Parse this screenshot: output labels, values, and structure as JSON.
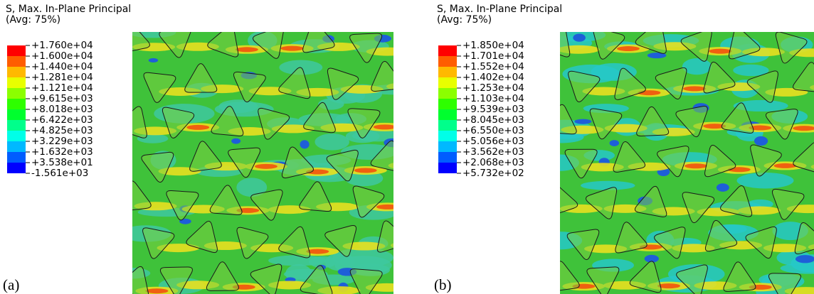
{
  "panels": [
    {
      "title": "S, Max. In-Plane Principal",
      "subtitle": "(Avg: 75%)",
      "letter": "(a)",
      "legend_labels": [
        "+1.760e+04",
        "+1.600e+04",
        "+1.440e+04",
        "+1.281e+04",
        "+1.121e+04",
        "+9.615e+03",
        "+8.018e+03",
        "+6.422e+03",
        "+4.825e+03",
        "+3.229e+03",
        "+1.632e+03",
        "+3.538e+01",
        "-1.561e+03"
      ],
      "legend_colors": [
        "#ff0000",
        "#ff5d00",
        "#ffb900",
        "#e8ff00",
        "#8bff00",
        "#2eff00",
        "#00ff2e",
        "#00ff8b",
        "#00ffe8",
        "#00b9ff",
        "#005dff",
        "#0000ff"
      ]
    },
    {
      "title": "S, Max. In-Plane Principal",
      "subtitle": "(Avg: 75%)",
      "letter": "(b)",
      "legend_labels": [
        "+1.850e+04",
        "+1.701e+04",
        "+1.552e+04",
        "+1.402e+04",
        "+1.253e+04",
        "+1.103e+04",
        "+9.539e+03",
        "+8.045e+03",
        "+6.550e+03",
        "+5.056e+03",
        "+3.562e+03",
        "+2.068e+03",
        "+5.732e+02"
      ],
      "legend_colors": [
        "#ff0000",
        "#ff5d00",
        "#ffb900",
        "#e8ff00",
        "#8bff00",
        "#2eff00",
        "#00ff2e",
        "#00ff8b",
        "#00ffe8",
        "#00b9ff",
        "#005dff",
        "#0000ff"
      ]
    }
  ]
}
